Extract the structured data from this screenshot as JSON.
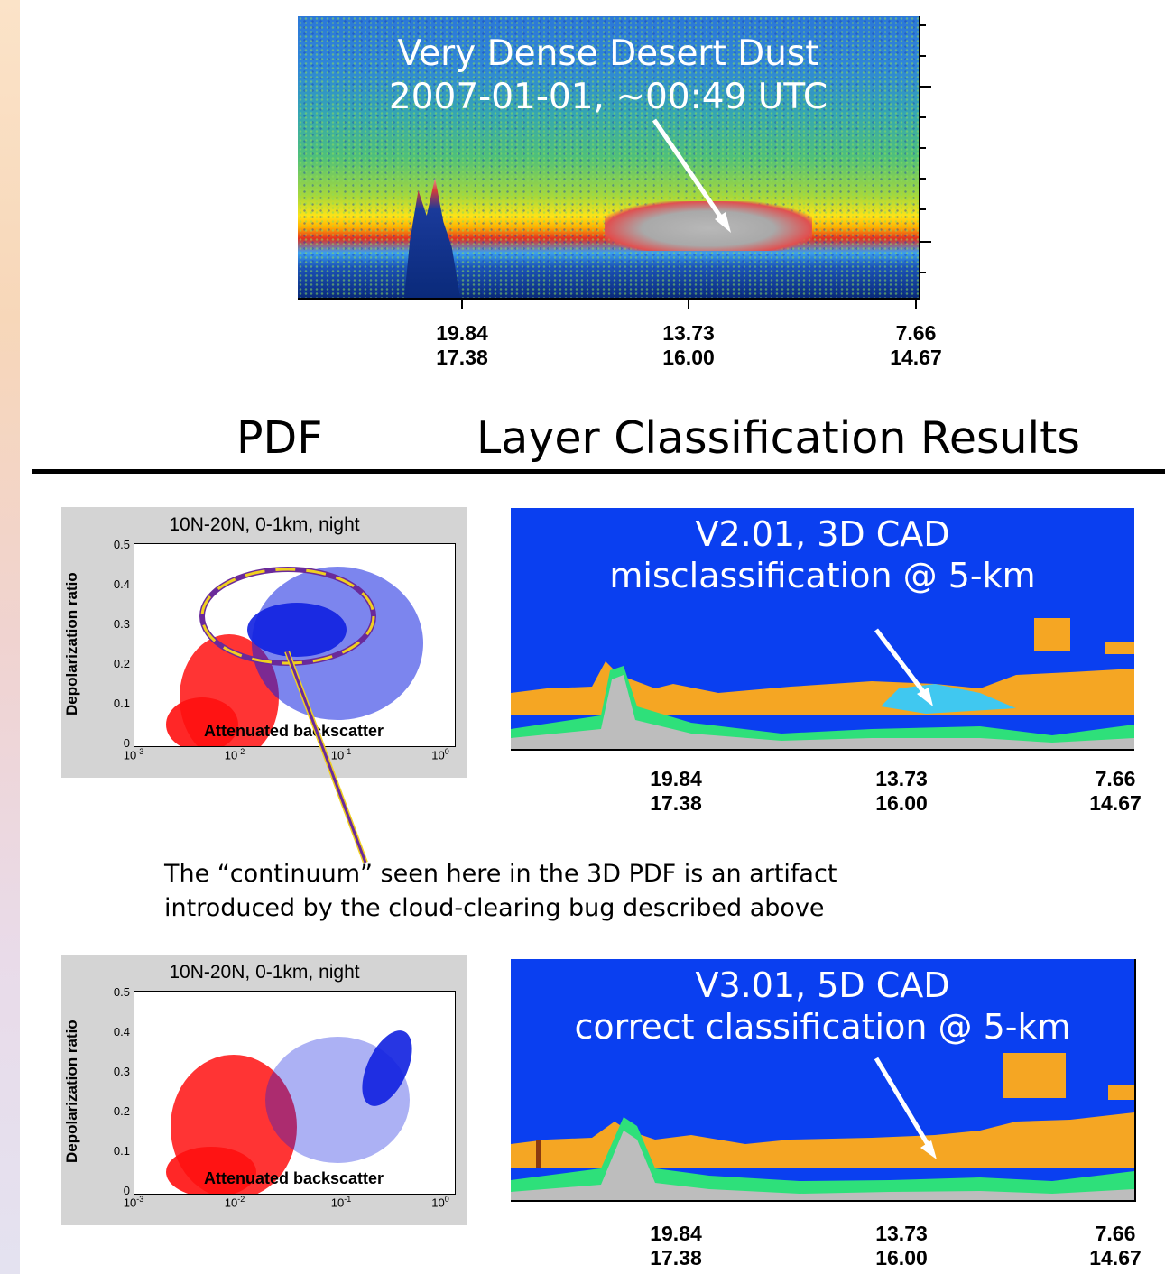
{
  "top_image": {
    "title_line1": "Very Dense Desert Dust",
    "title_line2": "2007-01-01, ~00:49 UTC",
    "x_ticks": [
      {
        "lat": "19.84",
        "lon": "17.38"
      },
      {
        "lat": "13.73",
        "lon": "16.00"
      },
      {
        "lat": "7.66",
        "lon": "14.67"
      }
    ]
  },
  "headings": {
    "left": "PDF",
    "right": "Layer Classification Results"
  },
  "pdf_plots": [
    {
      "title": "10N-20N, 0-1km, night",
      "ylabel": "Depolarization ratio",
      "xlabel": "Attenuated backscatter",
      "y_ticks": [
        "0.5",
        "0.4",
        "0.3",
        "0.2",
        "0.1",
        "0"
      ],
      "x_ticks": [
        {
          "base": "10",
          "exp": "-3"
        },
        {
          "base": "10",
          "exp": "-2"
        },
        {
          "base": "10",
          "exp": "-1"
        },
        {
          "base": "10",
          "exp": "0"
        }
      ]
    },
    {
      "title": "10N-20N, 0-1km, night",
      "ylabel": "Depolarization ratio",
      "xlabel": "Attenuated backscatter",
      "y_ticks": [
        "0.5",
        "0.4",
        "0.3",
        "0.2",
        "0.1",
        "0"
      ],
      "x_ticks": [
        {
          "base": "10",
          "exp": "-3"
        },
        {
          "base": "10",
          "exp": "-2"
        },
        {
          "base": "10",
          "exp": "-1"
        },
        {
          "base": "10",
          "exp": "0"
        }
      ]
    }
  ],
  "classification_panels": [
    {
      "title_line1": "V2.01, 3D CAD",
      "title_line2": "misclassification @ 5-km",
      "x_ticks": [
        {
          "lat": "19.84",
          "lon": "17.38"
        },
        {
          "lat": "13.73",
          "lon": "16.00"
        },
        {
          "lat": "7.66",
          "lon": "14.67"
        }
      ]
    },
    {
      "title_line1": "V3.01, 5D CAD",
      "title_line2": "correct classification @ 5-km",
      "x_ticks": [
        {
          "lat": "19.84",
          "lon": "17.38"
        },
        {
          "lat": "13.73",
          "lon": "16.00"
        },
        {
          "lat": "7.66",
          "lon": "14.67"
        }
      ]
    }
  ],
  "footnote": {
    "line1": "The “continuum” seen here in the 3D PDF is an artifact",
    "line2": "introduced by the cloud-clearing bug described above"
  },
  "colors": {
    "background_blue": "#0a3ff0",
    "aerosol_orange": "#f5a623",
    "surface_green": "#2ee07a",
    "misclass_cyan": "#40c8f0",
    "scatter_red": "#ff1010",
    "scatter_blue": "#1020e0",
    "ellipse_yellow": "#f0d020",
    "ellipse_purple": "#6a2a9a"
  }
}
